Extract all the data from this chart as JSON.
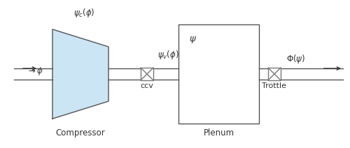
{
  "fig_width": 5.0,
  "fig_height": 2.12,
  "dpi": 100,
  "bg_color": "#ffffff",
  "line_color": "#555555",
  "arrow_color": "#333333",
  "label_color": "#333333",
  "compressor_fill": "#cce5f5",
  "compressor_edge": "#555555",
  "valve_color": "#777777",
  "psi_c_label": "$\\psi_c(\\phi)$",
  "psi_v_label": "$\\psi_v(\\phi)$",
  "psi_label": "$\\psi$",
  "phi_label": "$\\rightarrow \\phi$",
  "ccv_label": "ccv",
  "throttle_label": "Trottle",
  "phi_psi_label": "$\\Phi(\\psi)$",
  "compressor_label": "Compressor",
  "plenum_label": "Plenum"
}
